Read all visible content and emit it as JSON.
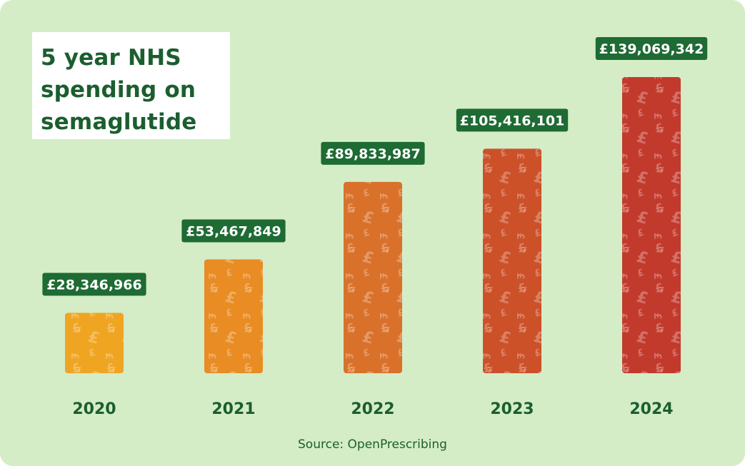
{
  "title": "5 year NHS spending on semaglutide",
  "source": "Source: OpenPrescribing",
  "colors": {
    "background": "#d4edc7",
    "text_green": "#1b5e2f",
    "label_bg": "#1e6b33",
    "bars": [
      "#efa522",
      "#e88c23",
      "#d9712a",
      "#cc5128",
      "#c23a2c"
    ]
  },
  "chart_data": {
    "type": "bar",
    "title": "5 year NHS spending on semaglutide",
    "categories": [
      "2020",
      "2021",
      "2022",
      "2023",
      "2024"
    ],
    "values": [
      28346966,
      53467849,
      89833987,
      105416101,
      139069342
    ],
    "value_labels": [
      "£28,346,966",
      "£53,467,849",
      "£89,833,987",
      "£105,416,101",
      "£139,069,342"
    ],
    "xlabel": "",
    "ylabel": "",
    "ylim": [
      0,
      139069342
    ],
    "grid": false,
    "legend": "none",
    "bar_pattern_icon": "pound-sign-icon"
  }
}
